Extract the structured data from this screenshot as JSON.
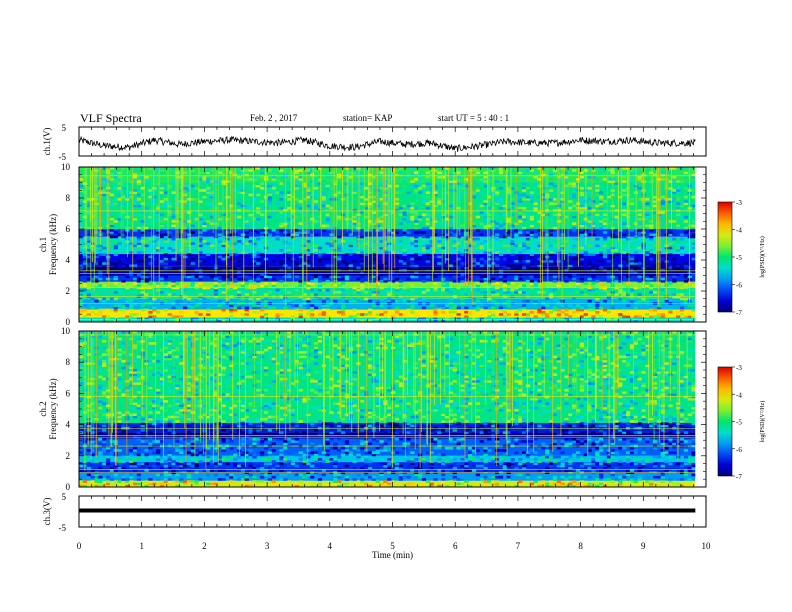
{
  "header": {
    "title": "VLF Spectra",
    "date": "Feb. 2 , 2017",
    "station": "station= KAP",
    "start": "start UT = 5 : 40 : 1"
  },
  "chart_data": [
    {
      "id": "ch1-waveform",
      "type": "line",
      "ylabel": "ch.1(V)",
      "ylim": [
        -5,
        5
      ],
      "yticks": [
        "5",
        "-5"
      ],
      "xlim": [
        0,
        10
      ],
      "x_end": 9.83,
      "series": [
        {
          "x": [
            0,
            0.4,
            0.8,
            1.2,
            1.6,
            2.0,
            2.4,
            2.8,
            3.2,
            3.6,
            4.0,
            4.4,
            4.8,
            5.2,
            5.6,
            6.0,
            6.4,
            6.8,
            7.2,
            7.6,
            8.0,
            8.4,
            8.8,
            9.2,
            9.6,
            9.83
          ],
          "values": [
            0.5,
            -1.5,
            -2.0,
            0.5,
            -1.0,
            0.0,
            0.5,
            0.0,
            -0.5,
            0.5,
            -1.5,
            -2.0,
            0.0,
            -1.0,
            -0.5,
            -2.5,
            -1.5,
            0.0,
            -0.5,
            -0.5,
            0.5,
            0.0,
            0.5,
            -0.5,
            -0.5,
            -0.5
          ],
          "color": "#000000"
        }
      ]
    },
    {
      "id": "ch1-spectrogram",
      "type": "heatmap",
      "ylabel": "ch.1\nFrequency (kHz)",
      "ylim": [
        0,
        10
      ],
      "yticks": [
        "0",
        "2",
        "4",
        "6",
        "8",
        "10"
      ],
      "xlim": [
        0,
        10
      ],
      "x_end": 9.83,
      "colorbar": {
        "label": "log(PSD)(V²/Hz)",
        "range": [
          -7,
          -3
        ],
        "ticks": [
          "-3",
          "-4",
          "-5",
          "-6",
          "-7"
        ]
      },
      "bands_khz_to_log_psd": [
        {
          "from": 0,
          "to": 0.3,
          "value": -5.3
        },
        {
          "from": 0.3,
          "to": 0.8,
          "value": -4.0
        },
        {
          "from": 0.8,
          "to": 1.5,
          "value": -5.7
        },
        {
          "from": 1.5,
          "to": 2.2,
          "value": -5.2
        },
        {
          "from": 2.2,
          "to": 2.6,
          "value": -4.6
        },
        {
          "from": 2.6,
          "to": 3.0,
          "value": -6.3
        },
        {
          "from": 3.0,
          "to": 3.6,
          "value": -6.9
        },
        {
          "from": 3.6,
          "to": 4.4,
          "value": -6.5
        },
        {
          "from": 4.4,
          "to": 5.5,
          "value": -5.4
        },
        {
          "from": 5.5,
          "to": 6.0,
          "value": -6.3
        },
        {
          "from": 6.0,
          "to": 9.0,
          "value": -5.1
        },
        {
          "from": 9.0,
          "to": 10.0,
          "value": -4.9
        }
      ]
    },
    {
      "id": "ch2-spectrogram",
      "type": "heatmap",
      "ylabel": "ch.2\nFrequency (kHz)",
      "ylim": [
        0,
        10
      ],
      "yticks": [
        "0",
        "2",
        "4",
        "6",
        "8",
        "10"
      ],
      "xlim": [
        0,
        10
      ],
      "x_end": 9.83,
      "colorbar": {
        "label": "log(PSD)(V²/Hz)",
        "range": [
          -7,
          -3
        ],
        "ticks": [
          "-3",
          "-4",
          "-5",
          "-6",
          "-7"
        ]
      },
      "bands_khz_to_log_psd": [
        {
          "from": 0,
          "to": 0.4,
          "value": -4.2
        },
        {
          "from": 0.4,
          "to": 0.9,
          "value": -5.8
        },
        {
          "from": 0.9,
          "to": 1.6,
          "value": -6.3
        },
        {
          "from": 1.6,
          "to": 2.0,
          "value": -5.6
        },
        {
          "from": 2.0,
          "to": 3.1,
          "value": -6.1
        },
        {
          "from": 3.1,
          "to": 3.5,
          "value": -7.0
        },
        {
          "from": 3.5,
          "to": 4.1,
          "value": -6.4
        },
        {
          "from": 4.1,
          "to": 10.0,
          "value": -5.1
        }
      ]
    },
    {
      "id": "ch3-waveform",
      "type": "line",
      "ylabel": "ch.3(V)",
      "ylim": [
        -5,
        5
      ],
      "yticks": [
        "5",
        "-5"
      ],
      "xlim": [
        0,
        10
      ],
      "x_end": 9.83,
      "series": [
        {
          "x": [
            0,
            9.83
          ],
          "values": [
            0,
            0
          ],
          "color": "#000000"
        }
      ],
      "xlabel": "Time (min)",
      "xticks": [
        "0",
        "1",
        "2",
        "3",
        "4",
        "5",
        "6",
        "7",
        "8",
        "9",
        "10"
      ]
    }
  ]
}
